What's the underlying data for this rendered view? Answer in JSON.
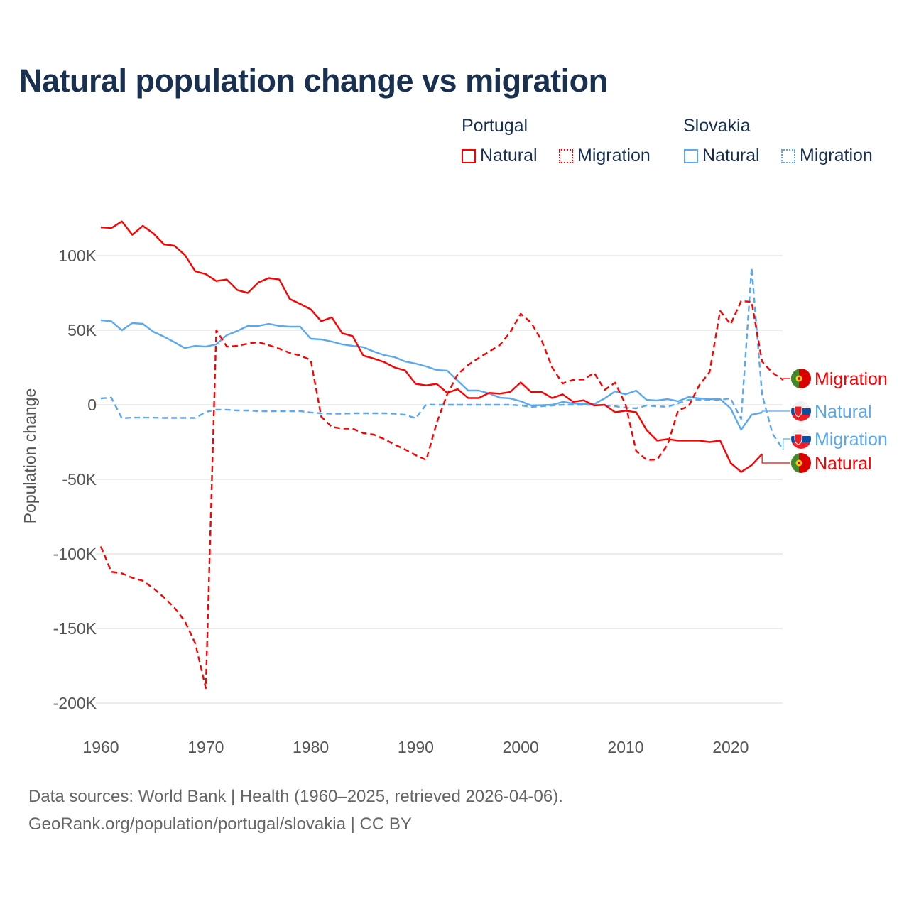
{
  "title": "Natural population change vs migration",
  "legend": {
    "groups": [
      {
        "name": "Portugal",
        "items": [
          "Natural",
          "Migration"
        ],
        "color": "#ff0000"
      },
      {
        "name": "Slovakia",
        "items": [
          "Natural",
          "Migration"
        ],
        "color": "#5aa8ef"
      }
    ]
  },
  "footer": {
    "line1": "Data sources: World Bank | Health (1960–2025, retrieved 2026-04-06).",
    "line2": "GeoRank.org/population/portugal/slovakia | CC BY"
  },
  "chart_data": {
    "type": "line",
    "title": "Natural population change vs migration",
    "xlabel": "",
    "ylabel": "Population change",
    "ylim": [
      -200000,
      100000
    ],
    "xlim": [
      1960,
      2025
    ],
    "grid": true,
    "legend_placement": "top-right",
    "x_ticks": [
      1960,
      1970,
      1980,
      1990,
      2000,
      2010,
      2020
    ],
    "x_tick_labels": [
      "1960",
      "1970",
      "1980",
      "1990",
      "2000",
      "2010",
      "2020"
    ],
    "y_ticks": [
      100000,
      50000,
      0,
      -50000,
      -100000,
      -150000,
      -200000
    ],
    "y_tick_labels": [
      "100K",
      "50K",
      "0",
      "-50K",
      "-100K",
      "-150K",
      "-200K"
    ],
    "series": [
      {
        "name": "Natural",
        "country": "Portugal",
        "color": "#ff0000",
        "dash": false,
        "start": 1960,
        "end_label": "Natural",
        "values": [
          119000,
          118500,
          123000,
          114000,
          120000,
          115000,
          107600,
          106700,
          100500,
          89500,
          87600,
          83000,
          84000,
          77000,
          75000,
          82000,
          85000,
          84000,
          71000,
          67600,
          64000,
          56000,
          58600,
          48000,
          46000,
          33000,
          31000,
          28600,
          25000,
          23000,
          14000,
          13000,
          14000,
          8000,
          10500,
          4500,
          4500,
          8000,
          7500,
          8500,
          15000,
          8500,
          8500,
          4500,
          7000,
          2000,
          3000,
          -500,
          0,
          -5000,
          -4000,
          -5000,
          -17000,
          -24000,
          -23000,
          -24000,
          -24000,
          -24000,
          -25000,
          -24000,
          -39000,
          -45000,
          -40500,
          -33000
        ]
      },
      {
        "name": "Migration",
        "country": "Portugal",
        "color": "#ff0000",
        "dash": true,
        "start": 1960,
        "end_label": "Migration",
        "values": [
          -95000,
          -112000,
          -113000,
          -116000,
          -118000,
          -123000,
          -129000,
          -136000,
          -145000,
          -160000,
          -190000,
          50000,
          39000,
          39500,
          41000,
          42000,
          40000,
          37600,
          34800,
          33000,
          30000,
          -8000,
          -14800,
          -16000,
          -16000,
          -19000,
          -20000,
          -23000,
          -26700,
          -30000,
          -33800,
          -37000,
          -12000,
          7000,
          20500,
          26700,
          31400,
          35700,
          40000,
          48600,
          61000,
          55000,
          43000,
          25000,
          14300,
          16700,
          17000,
          21400,
          10000,
          14800,
          0,
          -31000,
          -37000,
          -36700,
          -26700,
          -3800,
          -1000,
          13000,
          22000,
          63000,
          54000,
          69500,
          69000,
          29000,
          21400,
          16700
        ]
      },
      {
        "name": "Natural",
        "country": "Slovakia",
        "color": "#5aa8ef",
        "dash": false,
        "start": 1960,
        "end_label": "Natural",
        "values": [
          56700,
          56000,
          50000,
          54800,
          54300,
          49000,
          45700,
          42000,
          38000,
          39500,
          39000,
          40500,
          46700,
          49500,
          52900,
          52900,
          54300,
          52900,
          52400,
          52400,
          44300,
          43800,
          42400,
          40500,
          39500,
          38600,
          35700,
          33300,
          31900,
          29000,
          27600,
          25700,
          23300,
          22900,
          16200,
          9500,
          9500,
          7600,
          4800,
          4300,
          2400,
          -500,
          -300,
          0,
          1900,
          1000,
          500,
          500,
          4300,
          9000,
          7000,
          9500,
          3300,
          2900,
          3800,
          2400,
          5200,
          4300,
          3800,
          3800,
          -2400,
          -16700,
          -6700,
          -5200
        ]
      },
      {
        "name": "Migration",
        "country": "Slovakia",
        "color": "#5aa8ef",
        "dash": true,
        "start": 1960,
        "end_label": "Migration",
        "values": [
          4300,
          4800,
          -9000,
          -8600,
          -8600,
          -8600,
          -8800,
          -8800,
          -8800,
          -8800,
          -4800,
          -3300,
          -3300,
          -3800,
          -3800,
          -4300,
          -4300,
          -4300,
          -4300,
          -4300,
          -5200,
          -5700,
          -6000,
          -6000,
          -5700,
          -5700,
          -5700,
          -5700,
          -6000,
          -6700,
          -9000,
          200,
          0,
          0,
          0,
          0,
          0,
          0,
          0,
          0,
          -500,
          -1400,
          -1000,
          -500,
          0,
          0,
          0,
          0,
          -500,
          -1000,
          -1900,
          -2400,
          -500,
          -1000,
          -1400,
          1000,
          3300,
          3300,
          3300,
          3300,
          4300,
          -9500,
          92000,
          6700,
          -19500,
          -30000
        ]
      }
    ]
  }
}
